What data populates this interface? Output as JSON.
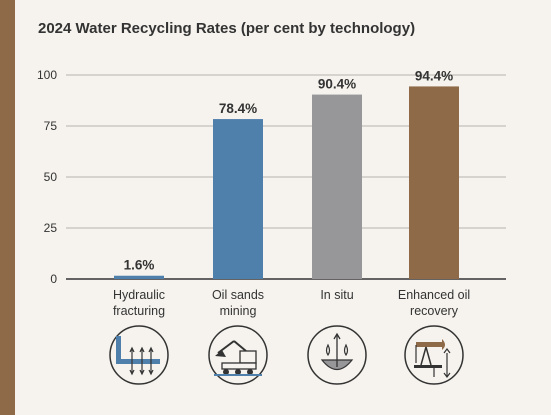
{
  "chart_data": {
    "type": "bar",
    "title": "2024 Water Recycling Rates (per cent by technology)",
    "categories": [
      [
        "Hydraulic",
        "fracturing"
      ],
      [
        "Oil sands",
        "mining"
      ],
      [
        "In situ"
      ],
      [
        "Enhanced oil",
        "recovery"
      ]
    ],
    "values": [
      1.6,
      78.4,
      90.4,
      94.4
    ],
    "data_labels": [
      "1.6%",
      "78.4%",
      "90.4%",
      "94.4%"
    ],
    "bar_colors": [
      "#4f7fab",
      "#4f7fab",
      "#97979a",
      "#8f6a48"
    ],
    "ylim": [
      0,
      100
    ],
    "yticks": [
      0,
      25,
      50,
      75,
      100
    ],
    "grid": true,
    "xlabel": "",
    "ylabel": "",
    "icons": [
      "hydraulic-fracturing-icon",
      "oil-sands-mining-icon",
      "in-situ-icon",
      "enhanced-oil-recovery-icon"
    ]
  }
}
